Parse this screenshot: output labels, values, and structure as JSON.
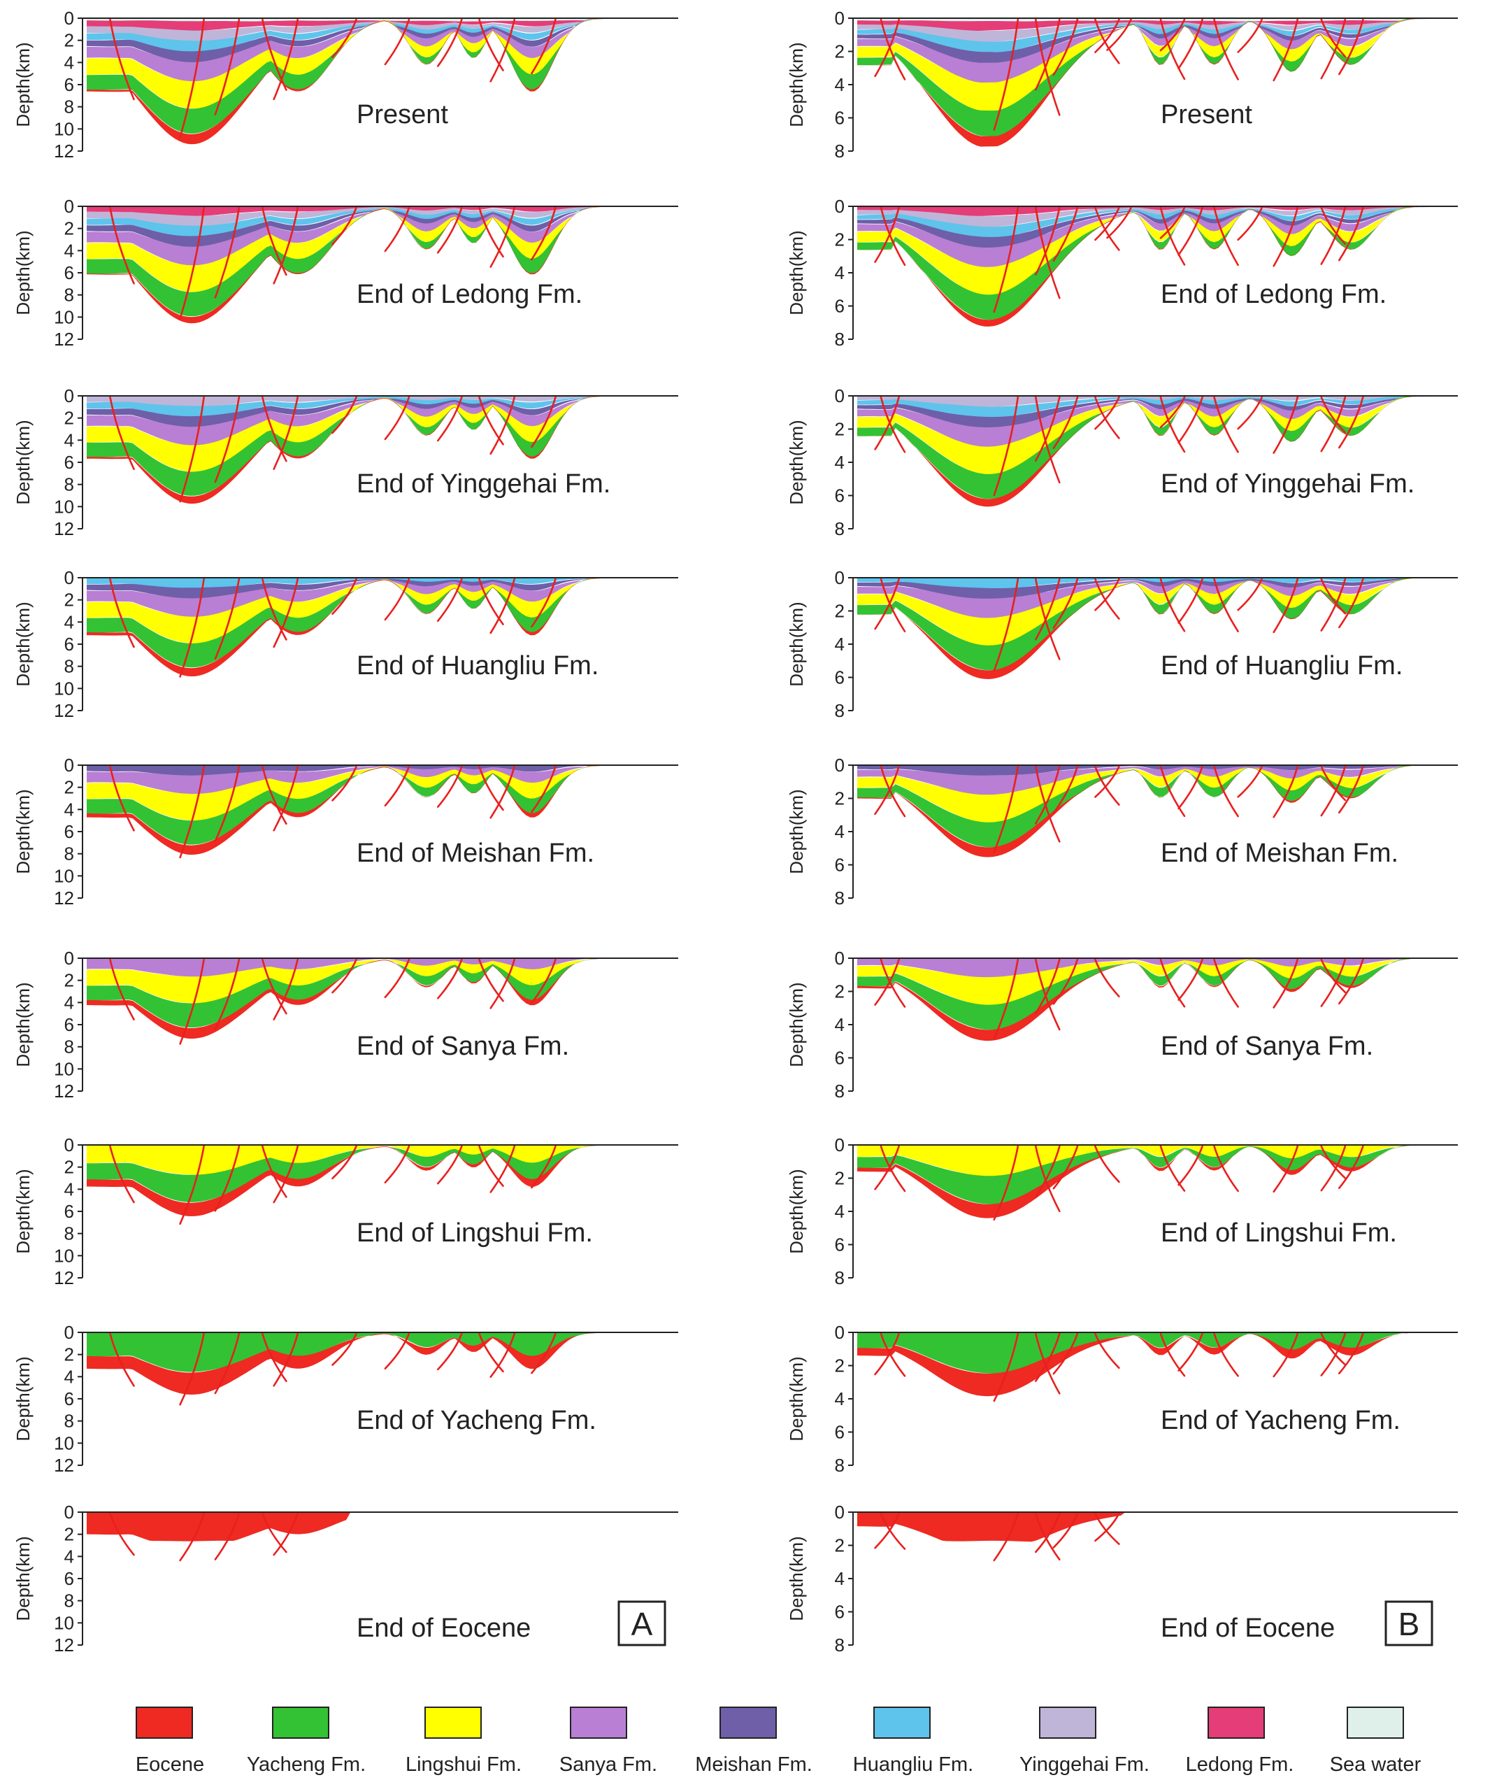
{
  "panels": [
    {
      "label": "A",
      "y_axis_title": "Depth(km)",
      "y_ticks": [
        "0",
        "2",
        "4",
        "6",
        "8",
        "10",
        "12"
      ]
    },
    {
      "label": "B",
      "y_axis_title": "Depth(km)",
      "y_ticks": [
        "0",
        "2",
        "4",
        "6",
        "8"
      ]
    }
  ],
  "stages": [
    {
      "name": "Present",
      "unit_count": 9
    },
    {
      "name": "End of Ledong Fm.",
      "unit_count": 8
    },
    {
      "name": "End of Yinggehai Fm.",
      "unit_count": 7
    },
    {
      "name": "End of Huangliu Fm.",
      "unit_count": 6
    },
    {
      "name": "End of Meishan Fm.",
      "unit_count": 5
    },
    {
      "name": "End of Sanya Fm.",
      "unit_count": 4
    },
    {
      "name": "End of Lingshui Fm.",
      "unit_count": 3
    },
    {
      "name": "End of Yacheng Fm.",
      "unit_count": 2
    },
    {
      "name": "End of Eocene",
      "unit_count": 1
    }
  ],
  "legend": [
    {
      "label": "Eocene",
      "color": "#ee2a22"
    },
    {
      "label": "Yacheng Fm.",
      "color": "#33c233"
    },
    {
      "label": "Lingshui Fm.",
      "color": "#ffff00"
    },
    {
      "label": "Sanya Fm.",
      "color": "#b97fd4"
    },
    {
      "label": "Meishan Fm.",
      "color": "#6e5fa8"
    },
    {
      "label": "Huangliu Fm.",
      "color": "#5ec4ec"
    },
    {
      "label": "Yinggehai Fm.",
      "color": "#bfb5d8"
    },
    {
      "label": "Ledong Fm.",
      "color": "#e43d77"
    },
    {
      "label": "Sea water",
      "color": "#dff0ea"
    }
  ]
}
